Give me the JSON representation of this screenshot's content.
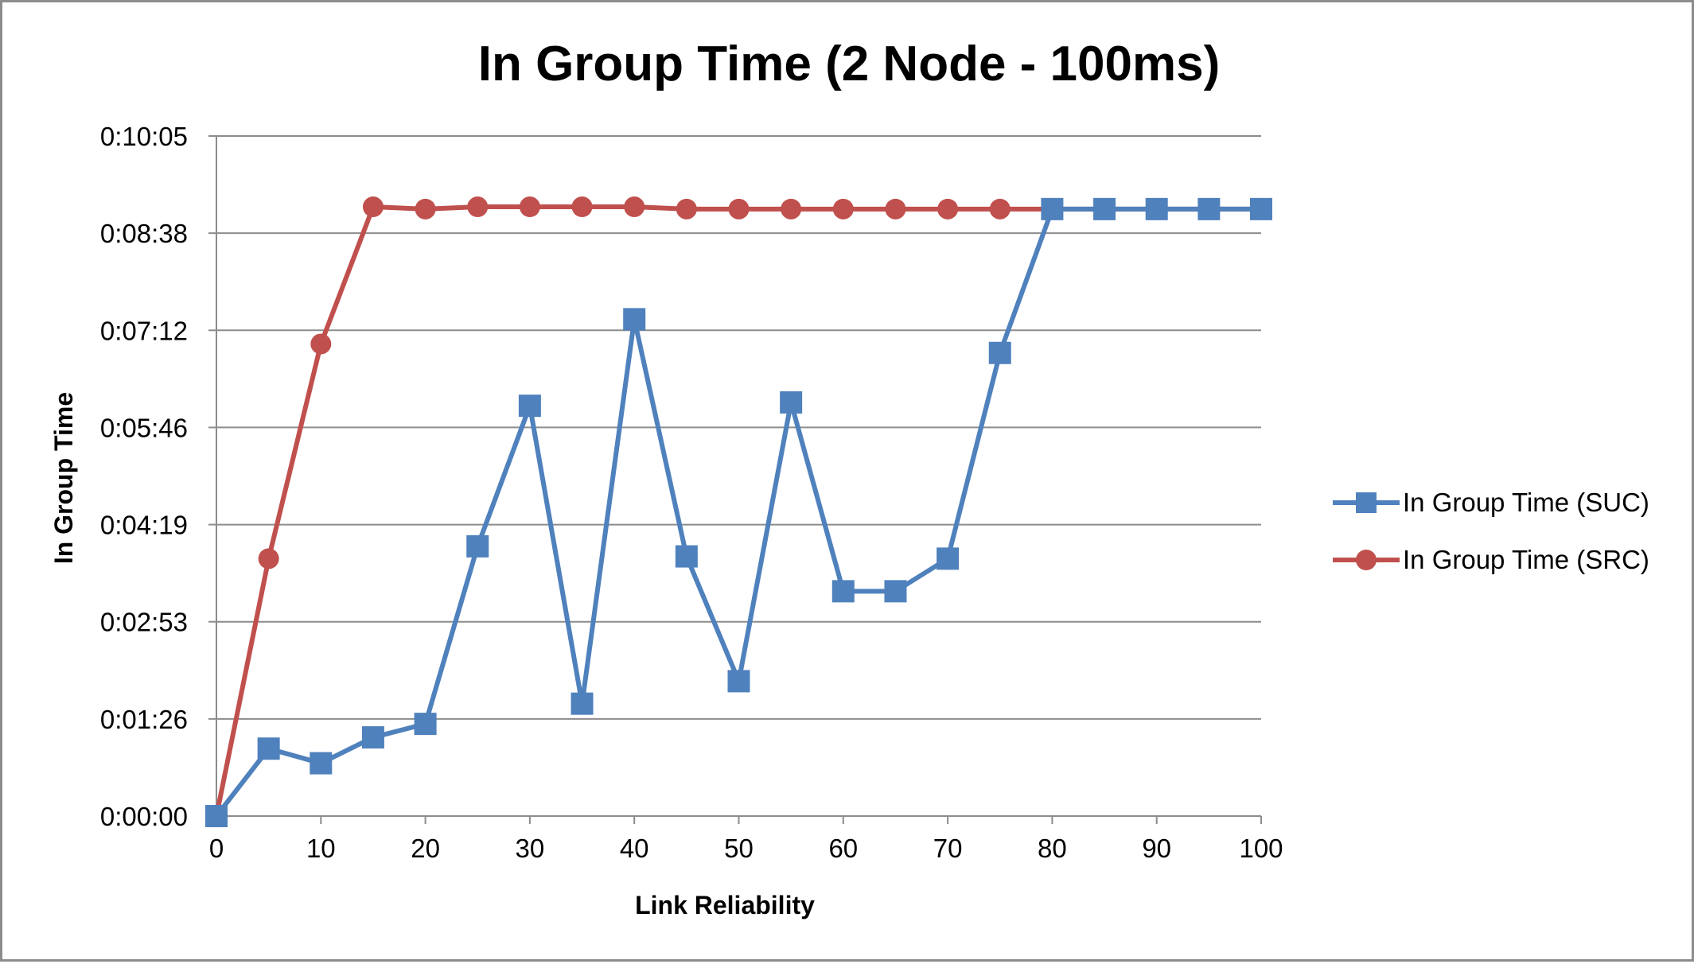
{
  "chart_data": {
    "type": "line",
    "title": "In Group Time (2 Node - 100ms)",
    "xlabel": "Link Reliability",
    "ylabel": "In Group Time",
    "x": [
      0,
      5,
      10,
      15,
      20,
      25,
      30,
      35,
      40,
      45,
      50,
      55,
      60,
      65,
      70,
      75,
      80,
      85,
      90,
      95,
      100
    ],
    "xlim": [
      0,
      100
    ],
    "x_ticks": [
      "0",
      "10",
      "20",
      "30",
      "40",
      "50",
      "60",
      "70",
      "80",
      "90",
      "100"
    ],
    "ylim": [
      0,
      605
    ],
    "y_ticks": [
      "0:00:00",
      "0:01:26",
      "0:02:53",
      "0:04:19",
      "0:05:46",
      "0:07:12",
      "0:08:38",
      "0:10:05"
    ],
    "grid": true,
    "legend_position": "right",
    "series": [
      {
        "name": "In Group Time (SUC)",
        "color": "#4f81bd",
        "marker": "square",
        "values": [
          0,
          60,
          47,
          70,
          82,
          240,
          365,
          100,
          442,
          231,
          120,
          368,
          200,
          200,
          229,
          412,
          540,
          540,
          540,
          540,
          540
        ]
      },
      {
        "name": "In Group Time (SRC)",
        "color": "#c0504d",
        "marker": "circle",
        "values": [
          0,
          229,
          420,
          542,
          540,
          542,
          542,
          542,
          542,
          540,
          540,
          540,
          540,
          540,
          540,
          540,
          540,
          540,
          540,
          540,
          540
        ]
      }
    ]
  }
}
